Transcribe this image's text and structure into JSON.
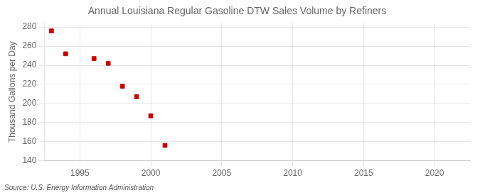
{
  "chart_data": {
    "type": "scatter",
    "title": "Annual Louisiana Regular Gasoline DTW Sales Volume by Refiners",
    "ylabel": "Thousand Gallons per Day",
    "annotations": [
      "Source: U.S. Energy Information Administration"
    ],
    "x": [
      1993,
      1994,
      1996,
      1997,
      1998,
      1999,
      2000,
      2001
    ],
    "values": [
      276,
      252,
      247,
      242,
      218,
      207,
      187,
      156
    ],
    "color": "#cc0000",
    "marker": "square",
    "xlim": [
      1992.5,
      2022.5
    ],
    "ylim": [
      140,
      284
    ],
    "xticks": [
      1995,
      2000,
      2005,
      2010,
      2015,
      2020
    ],
    "yticks": [
      140,
      160,
      180,
      200,
      220,
      240,
      260,
      280
    ],
    "grid": true
  }
}
